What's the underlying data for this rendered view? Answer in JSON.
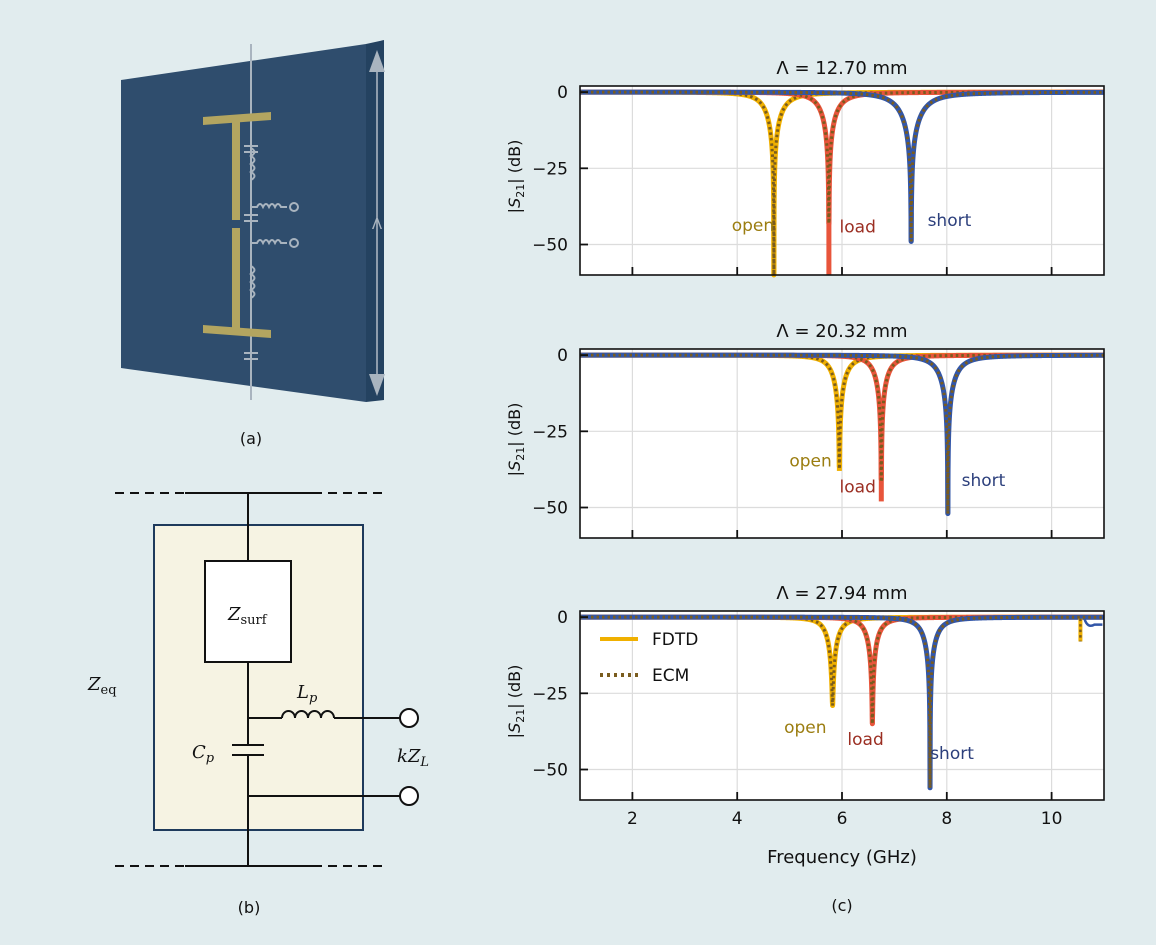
{
  "figure": {
    "background": "#e1ecee",
    "panel_a": {
      "caption": "(a)",
      "period_symbol": "Λ",
      "colors": {
        "board": "#2f4d6d",
        "board_side": "#244260",
        "strip": "#b3a560",
        "wire": "#a9b4bf"
      }
    },
    "panel_b": {
      "caption": "(b)",
      "z_eq": {
        "base": "Z",
        "sub": "eq"
      },
      "z_surf": {
        "base": "Z",
        "sub": "surf"
      },
      "l_p": {
        "base": "L",
        "sub": "p"
      },
      "c_p": {
        "base": "C",
        "sub": "p"
      },
      "k_zl": {
        "base": "kZ",
        "sub": "L"
      },
      "box_fill": "#f6f3e3",
      "box_stroke": "#1e3a5c"
    },
    "panel_c": {
      "caption": "(c)"
    }
  },
  "chart_data": [
    {
      "type": "line",
      "title": "Λ = 12.70 mm",
      "ylabel": {
        "base": "|S",
        "sub": "21",
        "tail": "| (dB)"
      },
      "xlim": [
        1,
        11
      ],
      "ylim": [
        -60,
        2
      ],
      "yticks": [
        0,
        -25,
        -50
      ],
      "ytick_labels": [
        "0",
        "−25",
        "−50"
      ],
      "xticks": [
        2,
        4,
        6,
        8,
        10
      ],
      "grid": true,
      "series": [
        {
          "name": "open",
          "f0": 4.7,
          "min_db": -60,
          "q": 8
        },
        {
          "name": "load",
          "f0": 5.75,
          "min_db": -60,
          "q": 10
        },
        {
          "name": "short",
          "f0": 7.32,
          "min_db": -49,
          "q": 9
        }
      ],
      "annotations": [
        {
          "text": "open",
          "x": 4.3,
          "y": -45.5,
          "series": "open"
        },
        {
          "text": "load",
          "x": 6.3,
          "y": -46,
          "series": "load"
        },
        {
          "text": "short",
          "x": 8.05,
          "y": -44,
          "series": "short"
        }
      ]
    },
    {
      "type": "line",
      "title": "Λ = 20.32 mm",
      "ylabel": {
        "base": "|S",
        "sub": "21",
        "tail": "| (dB)"
      },
      "xlim": [
        1,
        11
      ],
      "ylim": [
        -60,
        2
      ],
      "yticks": [
        0,
        -25,
        -50
      ],
      "ytick_labels": [
        "0",
        "−25",
        "−50"
      ],
      "xticks": [
        2,
        4,
        6,
        8,
        10
      ],
      "grid": true,
      "series": [
        {
          "name": "open",
          "f0": 5.95,
          "min_db": -38,
          "q": 12
        },
        {
          "name": "load",
          "f0": 6.75,
          "min_db": -48,
          "q": 14
        },
        {
          "name": "short",
          "f0": 8.02,
          "min_db": -52,
          "q": 13
        }
      ],
      "annotations": [
        {
          "text": "open",
          "x": 5.4,
          "y": -36.5,
          "series": "open"
        },
        {
          "text": "load",
          "x": 6.3,
          "y": -45,
          "series": "load"
        },
        {
          "text": "short",
          "x": 8.7,
          "y": -43,
          "series": "short"
        }
      ]
    },
    {
      "type": "line",
      "title": "Λ = 27.94 mm",
      "ylabel": {
        "base": "|S",
        "sub": "21",
        "tail": "| (dB)"
      },
      "xlim": [
        1,
        11
      ],
      "ylim": [
        -60,
        2
      ],
      "yticks": [
        0,
        -25,
        -50
      ],
      "ytick_labels": [
        "0",
        "−25",
        "−50"
      ],
      "xticks": [
        2,
        4,
        6,
        8,
        10
      ],
      "xtick_labels": [
        "2",
        "4",
        "6",
        "8",
        "10"
      ],
      "xlabel": "Frequency (GHz)",
      "grid": true,
      "legend": {
        "position": "upper-left",
        "entries": [
          "FDTD",
          "ECM"
        ]
      },
      "series": [
        {
          "name": "open",
          "f0": 5.82,
          "min_db": -29,
          "q": 14
        },
        {
          "name": "load",
          "f0": 6.58,
          "min_db": -35,
          "q": 16
        },
        {
          "name": "short",
          "f0": 7.68,
          "min_db": -56,
          "q": 16
        }
      ],
      "artifact_at_ghz": 10.55,
      "annotations": [
        {
          "text": "open",
          "x": 5.3,
          "y": -38,
          "series": "open"
        },
        {
          "text": "load",
          "x": 6.45,
          "y": -42,
          "series": "load"
        },
        {
          "text": "short",
          "x": 8.1,
          "y": -46.5,
          "series": "short"
        }
      ]
    }
  ],
  "series_colors": {
    "open": "#f0b000",
    "load": "#e8553b",
    "short": "#3256a8",
    "ecm": "#7a5c1e"
  },
  "label_colors": {
    "open": "#9b7d10",
    "load": "#9b2e22",
    "short": "#2c3f7c"
  }
}
